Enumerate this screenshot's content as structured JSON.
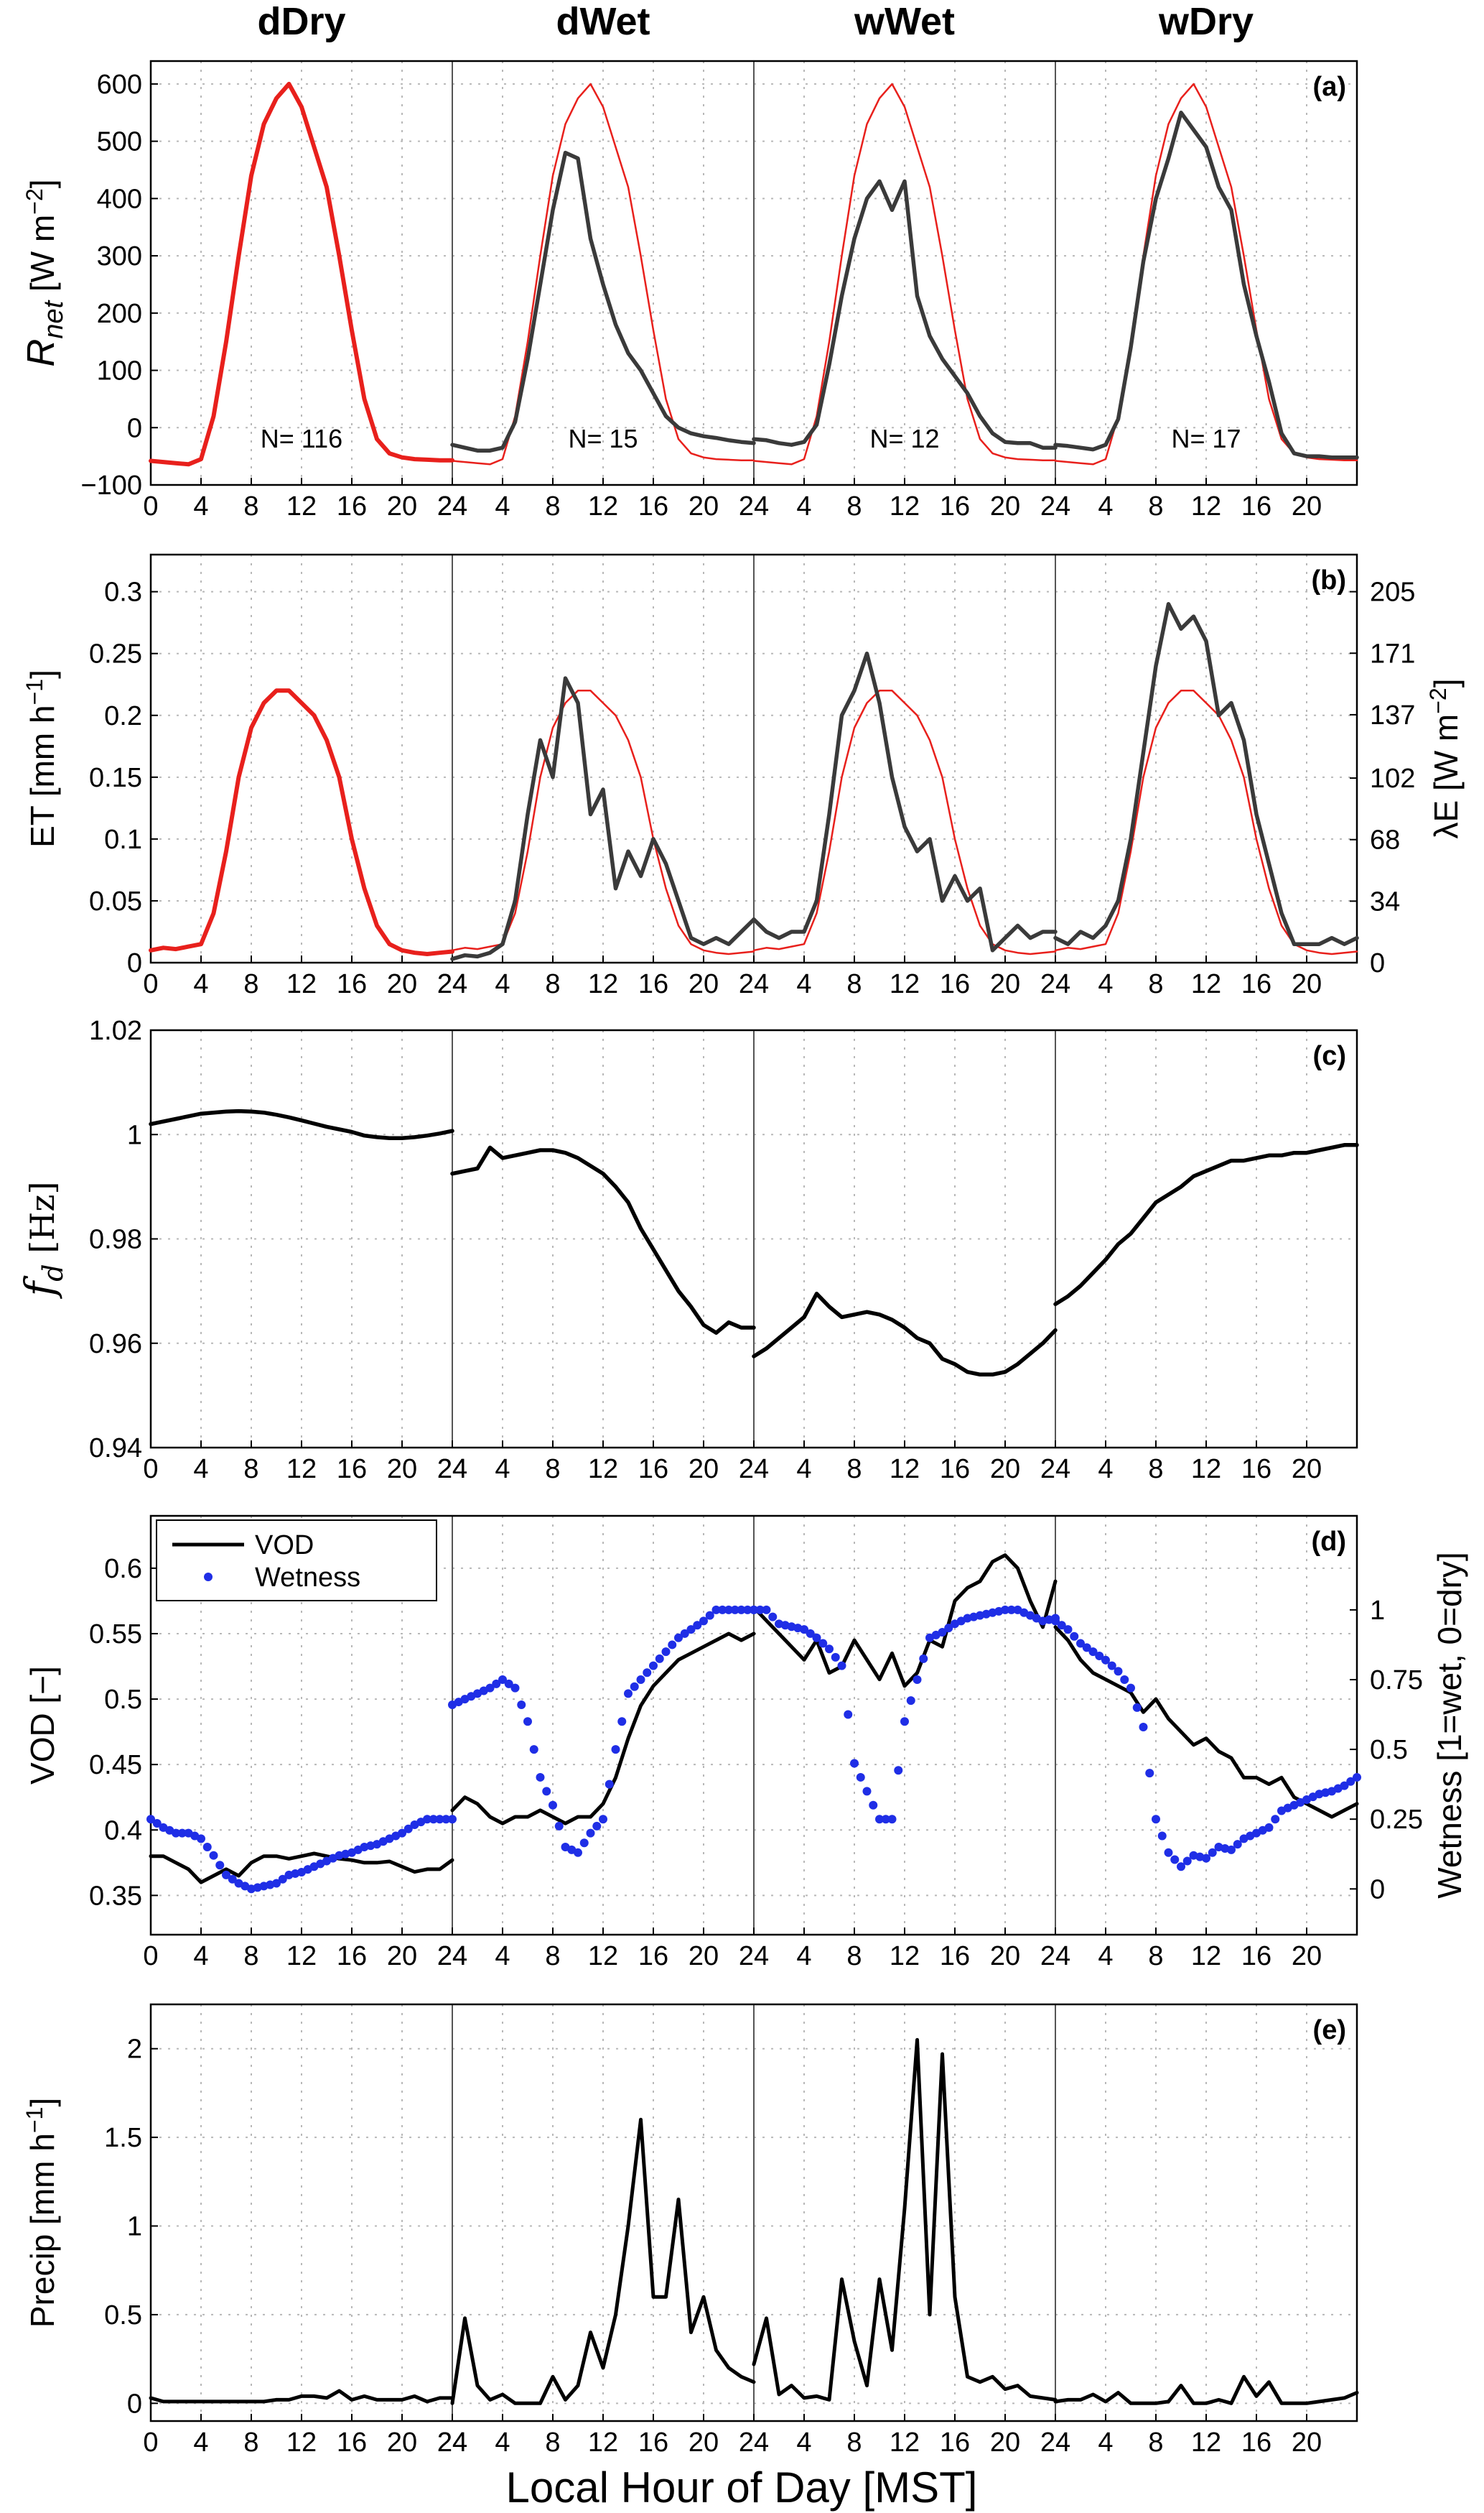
{
  "column_titles": [
    "dDry",
    "dWet",
    "wWet",
    "wDry"
  ],
  "x_title": "Local Hour of Day  [MST]",
  "x_ticks": [
    "0",
    "4",
    "8",
    "12",
    "16",
    "20",
    "24"
  ],
  "x_ticks_inner": [
    "24",
    "4",
    "8",
    "12",
    "16",
    "20",
    "24"
  ],
  "colors": {
    "red": "#e8201c",
    "dark": "#3a3a3a",
    "black": "#000000",
    "blue": "#1f2ee6"
  },
  "panels": {
    "a": {
      "label": "(a)",
      "ylabel_main": "R",
      "ylabel_sub": "net",
      "ylabel_units": "[W m",
      "ylabel_exp": "−2",
      "ylabel_close": "]",
      "yticks": [
        "600",
        "500",
        "400",
        "300",
        "200",
        "100",
        "0",
        "−100"
      ],
      "counts": [
        "N= 116",
        "N= 15",
        "N= 12",
        "N= 17"
      ]
    },
    "b": {
      "label": "(b)",
      "ylabel": "ET  [mm h",
      "ylabel_exp": "−1",
      "ylabel_close": "]",
      "ylabel_right": "λE  [W m",
      "ylabel_right_exp": "−2",
      "ylabel_right_close": "]",
      "yticks": [
        "0.3",
        "0.25",
        "0.2",
        "0.15",
        "0.1",
        "0.05",
        "0"
      ],
      "yticks_right": [
        "205",
        "171",
        "137",
        "102",
        "68",
        "34",
        "0"
      ]
    },
    "c": {
      "label": "(c)",
      "ylabel_main": "f",
      "ylabel_sub": "d",
      "ylabel_units": "[Hz]",
      "yticks": [
        "1.02",
        "1",
        "0.98",
        "0.96",
        "0.94"
      ]
    },
    "d": {
      "label": "(d)",
      "ylabel": "VOD [−]",
      "ylabel_right": "Wetness  [1=wet, 0=dry]",
      "yticks": [
        "0.6",
        "0.55",
        "0.5",
        "0.45",
        "0.4",
        "0.35"
      ],
      "yticks_right": [
        "1",
        "0.75",
        "0.5",
        "0.25",
        "0"
      ],
      "legend": [
        "VOD",
        "Wetness"
      ]
    },
    "e": {
      "label": "(e)",
      "ylabel": "Precip [mm h",
      "ylabel_exp": "−1",
      "ylabel_close": "]",
      "yticks": [
        "2",
        "1.5",
        "1",
        "0.5",
        "0"
      ]
    }
  },
  "chart_data": [
    {
      "type": "line",
      "panel": "a",
      "ylabel": "R_net [W m^-2]",
      "ylim": [
        -100,
        640
      ],
      "x": [
        0,
        1,
        2,
        3,
        4,
        5,
        6,
        7,
        8,
        9,
        10,
        11,
        12,
        13,
        14,
        15,
        16,
        17,
        18,
        19,
        20,
        21,
        22,
        23,
        24
      ],
      "reference_dDry": [
        -58,
        -60,
        -62,
        -64,
        -55,
        20,
        150,
        300,
        440,
        530,
        575,
        600,
        560,
        490,
        420,
        300,
        170,
        50,
        -20,
        -45,
        -52,
        -55,
        -56,
        -57,
        -57
      ],
      "series": [
        {
          "name": "dWet",
          "values": [
            -30,
            -35,
            -40,
            -40,
            -35,
            10,
            120,
            250,
            380,
            480,
            470,
            330,
            250,
            180,
            130,
            100,
            60,
            20,
            0,
            -10,
            -15,
            -18,
            -22,
            -25,
            -27
          ]
        },
        {
          "name": "wWet",
          "values": [
            -20,
            -22,
            -27,
            -30,
            -25,
            5,
            110,
            230,
            330,
            400,
            430,
            380,
            430,
            230,
            160,
            120,
            90,
            60,
            20,
            -10,
            -25,
            -27,
            -27,
            -35,
            -35
          ]
        },
        {
          "name": "wDry",
          "values": [
            -30,
            -32,
            -35,
            -38,
            -30,
            15,
            140,
            290,
            400,
            470,
            550,
            520,
            490,
            420,
            380,
            250,
            160,
            80,
            -10,
            -45,
            -50,
            -50,
            -52,
            -52,
            -52
          ]
        }
      ]
    },
    {
      "type": "line",
      "panel": "b",
      "ylabel": "ET [mm h^-1]",
      "ylim": [
        0,
        0.33
      ],
      "x": [
        0,
        1,
        2,
        3,
        4,
        5,
        6,
        7,
        8,
        9,
        10,
        11,
        12,
        13,
        14,
        15,
        16,
        17,
        18,
        19,
        20,
        21,
        22,
        23,
        24
      ],
      "reference_dDry": [
        0.01,
        0.012,
        0.011,
        0.013,
        0.015,
        0.04,
        0.09,
        0.15,
        0.19,
        0.21,
        0.22,
        0.22,
        0.21,
        0.2,
        0.18,
        0.15,
        0.1,
        0.06,
        0.03,
        0.015,
        0.01,
        0.008,
        0.007,
        0.008,
        0.009
      ],
      "series": [
        {
          "name": "dWet",
          "values": [
            0.003,
            0.006,
            0.005,
            0.008,
            0.015,
            0.05,
            0.12,
            0.18,
            0.15,
            0.23,
            0.21,
            0.12,
            0.14,
            0.06,
            0.09,
            0.07,
            0.1,
            0.08,
            0.05,
            0.02,
            0.015,
            0.02,
            0.015,
            0.025,
            0.035
          ]
        },
        {
          "name": "wWet",
          "values": [
            0.035,
            0.025,
            0.02,
            0.025,
            0.025,
            0.05,
            0.12,
            0.2,
            0.22,
            0.25,
            0.21,
            0.15,
            0.11,
            0.09,
            0.1,
            0.05,
            0.07,
            0.05,
            0.06,
            0.01,
            0.02,
            0.03,
            0.02,
            0.025,
            0.025
          ]
        },
        {
          "name": "wDry",
          "values": [
            0.02,
            0.015,
            0.025,
            0.02,
            0.03,
            0.05,
            0.1,
            0.17,
            0.24,
            0.29,
            0.27,
            0.28,
            0.26,
            0.2,
            0.21,
            0.18,
            0.12,
            0.08,
            0.04,
            0.015,
            0.015,
            0.015,
            0.02,
            0.015,
            0.02
          ]
        }
      ]
    },
    {
      "type": "line",
      "panel": "c",
      "ylabel": "f_d [Hz]",
      "ylim": [
        0.94,
        1.02
      ],
      "x": [
        0,
        1,
        2,
        3,
        4,
        5,
        6,
        7,
        8,
        9,
        10,
        11,
        12,
        13,
        14,
        15,
        16,
        17,
        18,
        19,
        20,
        21,
        22,
        23,
        24
      ],
      "series": [
        {
          "name": "dDry",
          "values": [
            1.002,
            1.0025,
            1.003,
            1.0035,
            1.004,
            1.0042,
            1.0044,
            1.0045,
            1.0044,
            1.0042,
            1.0038,
            1.0033,
            1.0027,
            1.0021,
            1.0015,
            1.001,
            1.0005,
            0.9998,
            0.9995,
            0.9993,
            0.9993,
            0.9995,
            0.9998,
            1.0002,
            1.0007
          ]
        },
        {
          "name": "dWet",
          "values": [
            0.9925,
            0.993,
            0.9935,
            0.9975,
            0.9955,
            0.996,
            0.9965,
            0.997,
            0.997,
            0.9965,
            0.9955,
            0.994,
            0.9925,
            0.99,
            0.987,
            0.982,
            0.978,
            0.974,
            0.97,
            0.967,
            0.9635,
            0.962,
            0.964,
            0.963,
            0.963
          ]
        },
        {
          "name": "wWet",
          "values": [
            0.9575,
            0.959,
            0.961,
            0.963,
            0.965,
            0.9695,
            0.967,
            0.965,
            0.9655,
            0.966,
            0.9655,
            0.9645,
            0.963,
            0.961,
            0.96,
            0.957,
            0.956,
            0.9545,
            0.954,
            0.954,
            0.9545,
            0.956,
            0.958,
            0.96,
            0.9625
          ]
        },
        {
          "name": "wDry",
          "values": [
            0.9675,
            0.969,
            0.971,
            0.9735,
            0.976,
            0.979,
            0.981,
            0.984,
            0.987,
            0.9885,
            0.99,
            0.992,
            0.993,
            0.994,
            0.995,
            0.995,
            0.9955,
            0.996,
            0.996,
            0.9965,
            0.9965,
            0.997,
            0.9975,
            0.998,
            0.998
          ]
        }
      ]
    },
    {
      "type": "line",
      "panel": "d",
      "ylabel": "VOD [−]",
      "ylim": [
        0.32,
        0.64
      ],
      "y2label": "Wetness [1=wet, 0=dry]",
      "y2lim": [
        -0.164,
        1.337
      ],
      "x": [
        0,
        1,
        2,
        3,
        4,
        5,
        6,
        7,
        8,
        9,
        10,
        11,
        12,
        13,
        14,
        15,
        16,
        17,
        18,
        19,
        20,
        21,
        22,
        23,
        24
      ],
      "series": [
        {
          "name": "VOD dDry",
          "values": [
            0.38,
            0.38,
            0.375,
            0.37,
            0.36,
            0.365,
            0.37,
            0.365,
            0.375,
            0.38,
            0.38,
            0.378,
            0.38,
            0.382,
            0.38,
            0.378,
            0.377,
            0.375,
            0.375,
            0.376,
            0.372,
            0.368,
            0.37,
            0.37,
            0.377
          ]
        },
        {
          "name": "VOD dWet",
          "values": [
            0.415,
            0.425,
            0.42,
            0.41,
            0.405,
            0.41,
            0.41,
            0.415,
            0.41,
            0.405,
            0.41,
            0.41,
            0.42,
            0.44,
            0.47,
            0.495,
            0.51,
            0.52,
            0.53,
            0.535,
            0.54,
            0.545,
            0.55,
            0.545,
            0.55
          ]
        },
        {
          "name": "VOD wWet",
          "values": [
            0.57,
            0.56,
            0.55,
            0.54,
            0.53,
            0.545,
            0.52,
            0.525,
            0.545,
            0.53,
            0.515,
            0.535,
            0.51,
            0.52,
            0.545,
            0.54,
            0.575,
            0.585,
            0.59,
            0.605,
            0.61,
            0.6,
            0.575,
            0.555,
            0.59
          ]
        },
        {
          "name": "VOD wDry",
          "values": [
            0.555,
            0.545,
            0.53,
            0.52,
            0.515,
            0.51,
            0.505,
            0.49,
            0.5,
            0.485,
            0.475,
            0.465,
            0.47,
            0.46,
            0.455,
            0.44,
            0.44,
            0.435,
            0.44,
            0.425,
            0.42,
            0.415,
            0.41,
            0.415,
            0.42
          ]
        },
        {
          "name": "Wetness dDry",
          "values": [
            0.25,
            0.22,
            0.2,
            0.2,
            0.18,
            0.12,
            0.05,
            0.02,
            0.0,
            0.01,
            0.02,
            0.05,
            0.06,
            0.08,
            0.1,
            0.12,
            0.13,
            0.15,
            0.16,
            0.18,
            0.2,
            0.23,
            0.25,
            0.25,
            0.25
          ]
        },
        {
          "name": "Wetness dWet",
          "values": [
            0.66,
            0.68,
            0.7,
            0.72,
            0.75,
            0.72,
            0.6,
            0.4,
            0.3,
            0.15,
            0.13,
            0.2,
            0.25,
            0.5,
            0.7,
            0.75,
            0.8,
            0.85,
            0.9,
            0.93,
            0.96,
            1.0,
            1.0,
            1.0,
            1.0
          ]
        },
        {
          "name": "Wetness wWet",
          "values": [
            1.0,
            1.0,
            0.95,
            0.94,
            0.93,
            0.9,
            0.86,
            0.8,
            0.45,
            0.35,
            0.25,
            0.25,
            0.6,
            0.75,
            0.9,
            0.92,
            0.95,
            0.97,
            0.98,
            0.99,
            1.0,
            1.0,
            0.98,
            0.96,
            0.97
          ]
        },
        {
          "name": "Wetness wDry",
          "values": [
            0.96,
            0.93,
            0.88,
            0.85,
            0.82,
            0.78,
            0.72,
            0.58,
            0.25,
            0.13,
            0.08,
            0.12,
            0.11,
            0.15,
            0.14,
            0.18,
            0.2,
            0.22,
            0.28,
            0.3,
            0.32,
            0.34,
            0.35,
            0.37,
            0.4
          ]
        }
      ]
    },
    {
      "type": "line",
      "panel": "e",
      "ylabel": "Precip [mm h^-1]",
      "ylim": [
        -0.1,
        2.25
      ],
      "x": [
        0,
        1,
        2,
        3,
        4,
        5,
        6,
        7,
        8,
        9,
        10,
        11,
        12,
        13,
        14,
        15,
        16,
        17,
        18,
        19,
        20,
        21,
        22,
        23,
        24
      ],
      "series": [
        {
          "name": "dDry",
          "values": [
            0.03,
            0.01,
            0.01,
            0.01,
            0.01,
            0.01,
            0.01,
            0.01,
            0.01,
            0.01,
            0.02,
            0.02,
            0.04,
            0.04,
            0.03,
            0.07,
            0.02,
            0.04,
            0.02,
            0.02,
            0.02,
            0.04,
            0.01,
            0.03,
            0.03
          ]
        },
        {
          "name": "dWet",
          "values": [
            0.0,
            0.48,
            0.1,
            0.02,
            0.05,
            0.0,
            0.0,
            0.0,
            0.15,
            0.02,
            0.1,
            0.4,
            0.2,
            0.5,
            1.0,
            1.6,
            0.6,
            0.6,
            1.15,
            0.4,
            0.6,
            0.3,
            0.2,
            0.15,
            0.12
          ]
        },
        {
          "name": "wWet",
          "values": [
            0.22,
            0.48,
            0.05,
            0.1,
            0.03,
            0.04,
            0.02,
            0.7,
            0.35,
            0.1,
            0.7,
            0.3,
            1.1,
            2.05,
            0.5,
            1.97,
            0.6,
            0.15,
            0.12,
            0.15,
            0.08,
            0.1,
            0.04,
            0.03,
            0.02
          ]
        },
        {
          "name": "wDry",
          "values": [
            0.01,
            0.02,
            0.02,
            0.05,
            0.01,
            0.06,
            0.0,
            0.0,
            0.0,
            0.01,
            0.1,
            0.0,
            0.0,
            0.02,
            0.0,
            0.15,
            0.04,
            0.12,
            0.0,
            0.0,
            0.0,
            0.01,
            0.02,
            0.03,
            0.06
          ]
        }
      ]
    }
  ]
}
